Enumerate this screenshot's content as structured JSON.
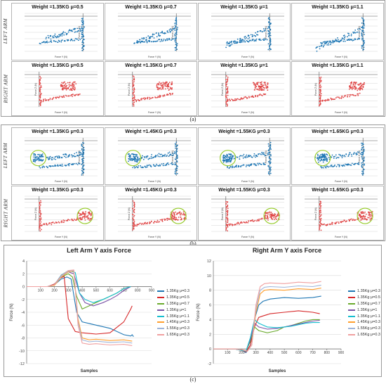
{
  "panel_a": {
    "caption": "(a)",
    "rows": [
      {
        "label": "LEFT ARM",
        "color": "#1f77b4",
        "titles": [
          "Weight =1.35KG μ=0.5",
          "Weight =1.35KG μ=0.7",
          "Weight =1.35KG μ=1",
          "Weight =1.35KG μ=1.1"
        ]
      },
      {
        "label": "RIGHT ARM",
        "color": "#e04646",
        "titles": [
          "Weight =1.35KG μ=0.5",
          "Weight =1.35KG μ=0.7",
          "Weight =1.35KG μ=1",
          "Weight =1.35KG μ=1.1"
        ]
      }
    ],
    "xlabel": "Force Y (N)",
    "ylabel": "Force Z (N)"
  },
  "panel_b": {
    "caption": "(b)",
    "rows": [
      {
        "label": "LEFT ARM",
        "color": "#1f77b4",
        "titles": [
          "Weight =1.35KG μ=0.3",
          "Weight =1.45KG μ=0.3",
          "Weight =1.55KG μ=0.3",
          "Weight =1.65KG μ=0.3"
        ]
      },
      {
        "label": "RIGHT ARM",
        "color": "#e04646",
        "titles": [
          "Weight =1.35KG μ=0.3",
          "Weight =1.45KG μ=0.3",
          "Weight =1.55KG μ=0.3",
          "Weight =1.65KG μ=0.3"
        ]
      }
    ],
    "highlight_color": "#9acd32",
    "xlabel": "Force Y (N)",
    "ylabel": "Force Z (N)"
  },
  "panel_c_caption": "(c)",
  "chart_data": [
    {
      "type": "line",
      "title": "Left Arm Y axis Force",
      "xlabel": "Samples",
      "ylabel": "Force (N)",
      "xlim": [
        0,
        900
      ],
      "ylim": [
        -12,
        4
      ],
      "xticks": [
        100,
        200,
        300,
        400,
        500,
        600,
        700,
        800,
        900
      ],
      "yticks": [
        -12,
        -10,
        -8,
        -6,
        -4,
        -2,
        0,
        2,
        4
      ],
      "series": [
        {
          "name": "1.35Kg μ=0.3",
          "color": "#1f77b4",
          "x": [
            0,
            150,
            200,
            250,
            290,
            320,
            360,
            400,
            500,
            600,
            700,
            750,
            760,
            770
          ],
          "y": [
            0,
            0,
            0.3,
            1.2,
            1.5,
            1.2,
            -4,
            -5.5,
            -6,
            -6.5,
            -7.5,
            -7.7,
            -7.5,
            -7.8
          ]
        },
        {
          "name": "1.35Kg μ=0.5",
          "color": "#d62728",
          "x": [
            0,
            150,
            200,
            240,
            270,
            300,
            350,
            400,
            500,
            600,
            700,
            750,
            760
          ],
          "y": [
            0,
            0,
            0.4,
            1.3,
            1.6,
            -5,
            -7,
            -7.2,
            -7.4,
            -7.2,
            -5.5,
            -3.5,
            -3
          ]
        },
        {
          "name": "1.35Kg μ=0.7",
          "color": "#6aaa2d",
          "x": [
            0,
            150,
            200,
            250,
            300,
            330,
            360,
            400,
            450,
            500,
            550,
            600,
            650,
            700,
            750
          ],
          "y": [
            0,
            0,
            0.3,
            1.5,
            2,
            1.5,
            -1.5,
            -3.5,
            -3,
            -2.5,
            -2,
            -1.5,
            -1,
            -0.3,
            0
          ]
        },
        {
          "name": "1.35Kg μ=1",
          "color": "#7b52a6",
          "x": [
            0,
            150,
            200,
            250,
            300,
            340,
            380,
            420,
            480,
            550,
            600,
            650,
            700,
            750
          ],
          "y": [
            0,
            0,
            0.3,
            1.8,
            2.3,
            2,
            -1,
            -2.5,
            -3,
            -2.5,
            -2,
            -1.4,
            -0.6,
            0
          ]
        },
        {
          "name": "1.35Kg μ=1.1",
          "color": "#17becf",
          "x": [
            0,
            150,
            200,
            250,
            300,
            350,
            380,
            420,
            480,
            550,
            600,
            650,
            700,
            750
          ],
          "y": [
            0,
            0,
            0.3,
            1.8,
            2.5,
            2.2,
            -1,
            -2,
            -2.5,
            -2,
            -1.5,
            -1,
            -0.3,
            0
          ]
        },
        {
          "name": "1.45Kg μ=0.3",
          "color": "#ff9f2e",
          "x": [
            0,
            150,
            200,
            250,
            300,
            340,
            370,
            400,
            450,
            500,
            600,
            700,
            760
          ],
          "y": [
            0,
            0,
            0.2,
            1.5,
            2.3,
            2.4,
            -5,
            -8,
            -8.3,
            -8.2,
            -8.4,
            -8.3,
            -8.5
          ]
        },
        {
          "name": "1.55Kg μ=0.3",
          "color": "#9fb5d9",
          "x": [
            0,
            150,
            200,
            250,
            300,
            340,
            370,
            400,
            450,
            500,
            600,
            700,
            760
          ],
          "y": [
            0,
            0,
            0.3,
            1.6,
            2.4,
            2.5,
            -5.5,
            -8.3,
            -8.6,
            -8.5,
            -8.7,
            -8.6,
            -8.8
          ]
        },
        {
          "name": "1.65Kg μ=0.3",
          "color": "#f0a0a0",
          "x": [
            0,
            150,
            200,
            250,
            300,
            340,
            370,
            400,
            450,
            500,
            600,
            700,
            760
          ],
          "y": [
            0,
            0,
            0.3,
            1.7,
            2.5,
            2.6,
            -6,
            -8.8,
            -9,
            -8.9,
            -9.1,
            -9,
            -9.2
          ]
        }
      ]
    },
    {
      "type": "line",
      "title": "Right Arm Y axis Force",
      "xlabel": "Samples",
      "ylabel": "Force (N)",
      "xlim": [
        0,
        900
      ],
      "ylim": [
        -2,
        12
      ],
      "xticks": [
        100,
        200,
        300,
        400,
        500,
        600,
        700,
        800,
        900
      ],
      "yticks": [
        -2,
        0,
        2,
        4,
        6,
        8,
        10,
        12
      ],
      "series": [
        {
          "name": "1.35Kg μ=0.3",
          "color": "#1f77b4",
          "x": [
            0,
            150,
            200,
            230,
            260,
            290,
            320,
            350,
            400,
            500,
            600,
            700,
            760
          ],
          "y": [
            0,
            0,
            -0.2,
            -0.5,
            0.5,
            4,
            6,
            6.5,
            6.8,
            7,
            6.9,
            7,
            7.2
          ]
        },
        {
          "name": "1.35Kg μ=0.5",
          "color": "#d62728",
          "x": [
            0,
            150,
            200,
            230,
            260,
            290,
            320,
            350,
            400,
            500,
            600,
            700,
            750
          ],
          "y": [
            0,
            0,
            -0.2,
            -0.4,
            0.5,
            3,
            4.3,
            4.5,
            4.8,
            5,
            5.2,
            5,
            4.8
          ]
        },
        {
          "name": "1.35Kg μ=0.7",
          "color": "#6aaa2d",
          "x": [
            0,
            150,
            200,
            230,
            260,
            290,
            320,
            380,
            450,
            500,
            550,
            600,
            650,
            700,
            750
          ],
          "y": [
            0,
            0,
            -0.2,
            -0.3,
            1,
            3,
            2.5,
            2.2,
            2.5,
            3,
            3.2,
            3.5,
            3.8,
            4,
            4
          ]
        },
        {
          "name": "1.35Kg μ=1",
          "color": "#7b52a6",
          "x": [
            0,
            150,
            200,
            230,
            260,
            290,
            320,
            380,
            450,
            500,
            550,
            600,
            650,
            700,
            750
          ],
          "y": [
            0,
            0,
            -0.2,
            -0.3,
            1.2,
            3.5,
            3,
            2.7,
            2.8,
            3,
            3.2,
            3.4,
            3.6,
            3.8,
            3.9
          ]
        },
        {
          "name": "1.35Kg μ=1.1",
          "color": "#17becf",
          "x": [
            0,
            150,
            200,
            230,
            260,
            290,
            320,
            380,
            450,
            500,
            550,
            600,
            650,
            700,
            750
          ],
          "y": [
            0,
            0,
            -0.2,
            -0.3,
            1.5,
            4,
            3.5,
            3,
            2.9,
            3,
            3.1,
            3.3,
            3.5,
            3.6,
            3.6
          ]
        },
        {
          "name": "1.45Kg μ=0.3",
          "color": "#ff9f2e",
          "x": [
            0,
            150,
            200,
            240,
            270,
            300,
            330,
            360,
            400,
            500,
            600,
            700,
            760
          ],
          "y": [
            0,
            0,
            -0.1,
            -0.3,
            0.5,
            5,
            7.5,
            8,
            8.1,
            8,
            8.2,
            8.1,
            8.3
          ]
        },
        {
          "name": "1.55Kg μ=0.3",
          "color": "#9fb5d9",
          "x": [
            0,
            150,
            200,
            240,
            270,
            300,
            330,
            360,
            400,
            500,
            600,
            700,
            760
          ],
          "y": [
            0,
            0,
            -0.1,
            -0.3,
            0.5,
            5.5,
            8,
            8.4,
            8.5,
            8.4,
            8.6,
            8.5,
            8.7
          ]
        },
        {
          "name": "1.65Kg μ=0.3",
          "color": "#f0a0a0",
          "x": [
            0,
            150,
            200,
            240,
            270,
            300,
            330,
            360,
            400,
            500,
            600,
            700,
            760
          ],
          "y": [
            0,
            0,
            -0.1,
            -0.3,
            0.5,
            6,
            8.5,
            8.9,
            9,
            8.9,
            9.1,
            9,
            9.2
          ]
        }
      ]
    }
  ]
}
